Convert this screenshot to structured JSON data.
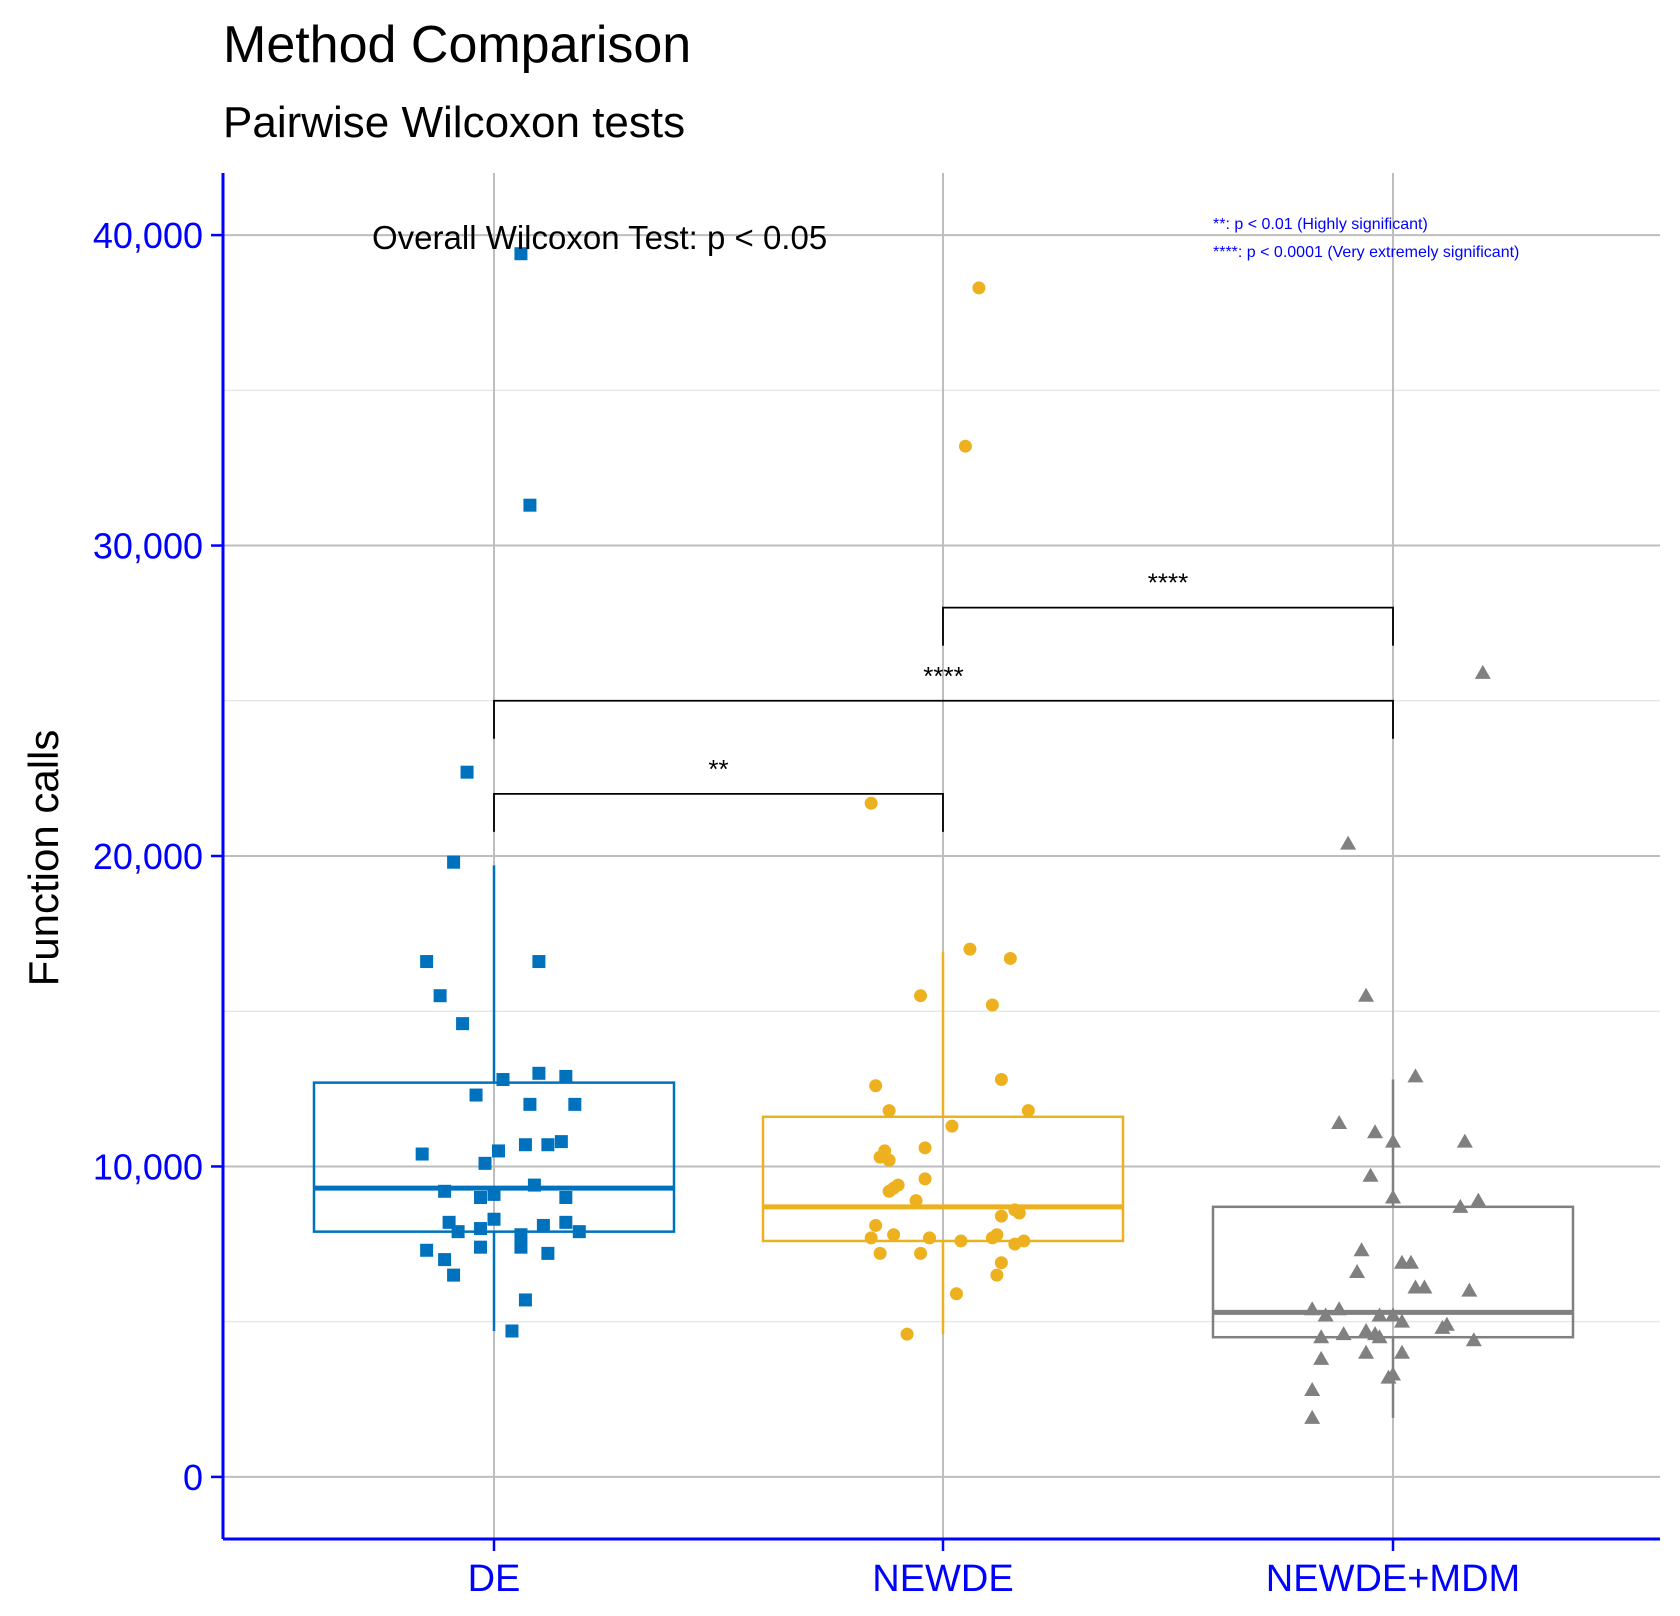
{
  "chart_data": {
    "type": "box",
    "title": "Method Comparison",
    "subtitle": "Pairwise Wilcoxon tests",
    "xlabel": "",
    "ylabel": "Function calls",
    "ylim": [
      -2000,
      42000
    ],
    "yticks": [
      0,
      10000,
      20000,
      30000,
      40000
    ],
    "ytick_labels": [
      "0",
      "10,000",
      "20,000",
      "30,000",
      "40,000"
    ],
    "minor_yticks": [
      5000,
      15000,
      25000,
      35000
    ],
    "categories": [
      "DE",
      "NEWDE",
      "NEWDE+MDM"
    ],
    "grid": true,
    "overall_annotation": "Overall Wilcoxon Test: p < 0.05",
    "legend_notes": [
      "**: p < 0.01 (Highly significant)",
      "****: p < 0.0001 (Very extremely significant)"
    ],
    "series": [
      {
        "name": "DE",
        "color": "#0072BD",
        "shape": "square",
        "box": {
          "whisker_low": 4700,
          "q1": 7900,
          "median": 9300,
          "q3": 12700,
          "whisker_high": 19700
        },
        "points": [
          [
            0.06,
            39400
          ],
          [
            0.08,
            31300
          ],
          [
            -0.06,
            22700
          ],
          [
            -0.09,
            19800
          ],
          [
            -0.15,
            16600
          ],
          [
            0.1,
            16600
          ],
          [
            -0.12,
            15500
          ],
          [
            -0.07,
            14600
          ],
          [
            0.02,
            12800
          ],
          [
            0.1,
            13000
          ],
          [
            0.16,
            12900
          ],
          [
            -0.04,
            12300
          ],
          [
            0.08,
            12000
          ],
          [
            0.18,
            12000
          ],
          [
            -0.16,
            10400
          ],
          [
            0.01,
            10500
          ],
          [
            -0.02,
            10100
          ],
          [
            0.07,
            10700
          ],
          [
            0.12,
            10700
          ],
          [
            0.15,
            10800
          ],
          [
            -0.11,
            9200
          ],
          [
            -0.03,
            9000
          ],
          [
            0.0,
            9100
          ],
          [
            0.09,
            9400
          ],
          [
            0.16,
            9000
          ],
          [
            -0.1,
            8200
          ],
          [
            -0.08,
            7900
          ],
          [
            -0.03,
            8000
          ],
          [
            0.0,
            8300
          ],
          [
            0.06,
            7800
          ],
          [
            0.11,
            8100
          ],
          [
            0.16,
            8200
          ],
          [
            0.19,
            7900
          ],
          [
            -0.15,
            7300
          ],
          [
            -0.11,
            7000
          ],
          [
            -0.03,
            7400
          ],
          [
            0.06,
            7400
          ],
          [
            0.12,
            7200
          ],
          [
            -0.09,
            6500
          ],
          [
            0.07,
            5700
          ],
          [
            0.04,
            4700
          ]
        ]
      },
      {
        "name": "NEWDE",
        "color": "#EDB120",
        "shape": "circle",
        "box": {
          "whisker_low": 4600,
          "q1": 7600,
          "median": 8700,
          "q3": 11600,
          "whisker_high": 16900
        },
        "points": [
          [
            0.08,
            38300
          ],
          [
            0.05,
            33200
          ],
          [
            -0.16,
            21700
          ],
          [
            0.06,
            17000
          ],
          [
            0.15,
            16700
          ],
          [
            -0.05,
            15500
          ],
          [
            0.11,
            15200
          ],
          [
            -0.12,
            11800
          ],
          [
            -0.12,
            10200
          ],
          [
            -0.15,
            8100
          ],
          [
            -0.11,
            7800
          ],
          [
            -0.03,
            7700
          ],
          [
            -0.15,
            12600
          ],
          [
            -0.14,
            10300
          ],
          [
            -0.13,
            10500
          ],
          [
            -0.04,
            10600
          ],
          [
            0.02,
            11300
          ],
          [
            0.13,
            12800
          ],
          [
            0.19,
            11800
          ],
          [
            -0.12,
            9200
          ],
          [
            -0.1,
            9400
          ],
          [
            -0.11,
            9300
          ],
          [
            -0.04,
            9600
          ],
          [
            -0.06,
            8900
          ],
          [
            0.13,
            8400
          ],
          [
            0.16,
            8600
          ],
          [
            0.17,
            8500
          ],
          [
            -0.16,
            7700
          ],
          [
            0.04,
            7600
          ],
          [
            0.11,
            7700
          ],
          [
            0.12,
            7800
          ],
          [
            0.16,
            7500
          ],
          [
            0.18,
            7600
          ],
          [
            -0.14,
            7200
          ],
          [
            -0.05,
            7200
          ],
          [
            0.13,
            6900
          ],
          [
            0.03,
            5900
          ],
          [
            0.12,
            6500
          ],
          [
            -0.08,
            4600
          ]
        ]
      },
      {
        "name": "NEWDE+MDM",
        "color": "#808080",
        "shape": "triangle",
        "box": {
          "whisker_low": 1900,
          "q1": 4500,
          "median": 5300,
          "q3": 8700,
          "whisker_high": 12800
        },
        "points": [
          [
            0.2,
            25900
          ],
          [
            -0.1,
            20400
          ],
          [
            -0.06,
            15500
          ],
          [
            0.05,
            12900
          ],
          [
            -0.12,
            11400
          ],
          [
            -0.04,
            11100
          ],
          [
            0.0,
            10800
          ],
          [
            0.16,
            10800
          ],
          [
            -0.05,
            9700
          ],
          [
            0.19,
            8900
          ],
          [
            0.15,
            8700
          ],
          [
            0.0,
            9000
          ],
          [
            -0.07,
            7300
          ],
          [
            0.04,
            6900
          ],
          [
            -0.08,
            6600
          ],
          [
            0.02,
            6900
          ],
          [
            0.05,
            6100
          ],
          [
            0.07,
            6100
          ],
          [
            0.17,
            6000
          ],
          [
            -0.18,
            5400
          ],
          [
            -0.15,
            5200
          ],
          [
            -0.12,
            5400
          ],
          [
            -0.03,
            5200
          ],
          [
            0.0,
            5200
          ],
          [
            -0.16,
            4500
          ],
          [
            -0.11,
            4600
          ],
          [
            -0.06,
            4700
          ],
          [
            -0.03,
            4500
          ],
          [
            -0.04,
            4600
          ],
          [
            0.02,
            5000
          ],
          [
            0.11,
            4800
          ],
          [
            0.12,
            4900
          ],
          [
            0.18,
            4400
          ],
          [
            -0.16,
            3800
          ],
          [
            -0.06,
            4000
          ],
          [
            0.02,
            4000
          ],
          [
            -0.18,
            2800
          ],
          [
            0.0,
            3300
          ],
          [
            -0.18,
            1900
          ],
          [
            -0.01,
            3200
          ]
        ]
      }
    ],
    "comparisons": [
      {
        "from": 0,
        "to": 1,
        "y": 22000,
        "label": "**"
      },
      {
        "from": 0,
        "to": 2,
        "y": 25000,
        "label": "****"
      },
      {
        "from": 1,
        "to": 2,
        "y": 28000,
        "label": "****"
      }
    ],
    "colors": {
      "axis": "#0000FF",
      "grid_major": "#BEBEBE",
      "grid_minor": "#E8E8E8",
      "text": "#000000"
    }
  }
}
